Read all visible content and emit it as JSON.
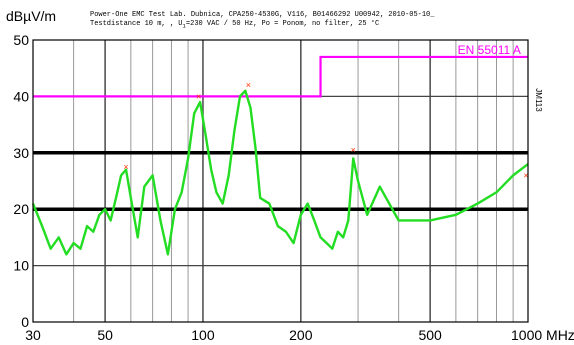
{
  "header": {
    "line1": "Power-One EMC Test Lab. Dubnica, CPA250-4530G, V116, B01466292 U00942, 2010-05-10_",
    "line2": "Testdistance 10 m, , U",
    "line2_sub": "1",
    "line2_rest": "=230 VAC / 50 Hz, Po = Ponom, no filter, 25 °C"
  },
  "chart_data": {
    "type": "line",
    "title": "",
    "ylabel": "dBµV/m",
    "xlabel": "MHz",
    "x_scale": "log",
    "xlim": [
      30,
      1000
    ],
    "ylim": [
      0,
      50
    ],
    "x_ticks": [
      {
        "value": 30,
        "label": "30"
      },
      {
        "value": 50,
        "label": "50"
      },
      {
        "value": 100,
        "label": "100"
      },
      {
        "value": 200,
        "label": "200"
      },
      {
        "value": 500,
        "label": "500"
      },
      {
        "value": 1000,
        "label": "1000 MHz"
      }
    ],
    "y_ticks": [
      0,
      10,
      20,
      30,
      40,
      50
    ],
    "grid": true,
    "side_label": "JM113",
    "colors": {
      "limit": "#ff00ff",
      "measurement": "#22dd22",
      "peak": "#ff3300",
      "qp": "#ffaa00"
    },
    "limit_line": {
      "name": "EN 55011 A",
      "x": [
        30,
        230,
        230,
        1000
      ],
      "y": [
        40,
        40,
        47,
        47
      ]
    },
    "measurement": {
      "x": [
        30,
        32,
        34,
        36,
        38,
        40,
        42,
        44,
        46,
        48,
        50,
        52,
        54,
        56,
        58,
        60,
        63,
        66,
        70,
        74,
        78,
        82,
        86,
        90,
        94,
        98,
        102,
        106,
        110,
        115,
        120,
        125,
        130,
        135,
        140,
        145,
        150,
        160,
        170,
        180,
        190,
        200,
        210,
        220,
        230,
        240,
        250,
        260,
        270,
        280,
        290,
        300,
        320,
        350,
        400,
        450,
        500,
        600,
        700,
        800,
        900,
        1000
      ],
      "y": [
        21,
        17,
        13,
        15,
        12,
        14,
        13,
        17,
        16,
        19,
        20,
        18,
        22,
        26,
        27,
        22,
        15,
        24,
        26,
        18,
        12,
        20,
        23,
        29,
        37,
        39,
        33,
        27,
        23,
        21,
        26,
        34,
        40,
        41,
        38,
        31,
        22,
        21,
        17,
        16,
        14,
        19,
        21,
        18,
        15,
        14,
        13,
        16,
        15,
        18,
        29,
        25,
        19,
        24,
        18,
        18,
        18,
        19,
        21,
        23,
        26,
        28
      ]
    },
    "peaks": [
      {
        "x": 58,
        "y": 27.5
      },
      {
        "x": 97,
        "y": 40
      },
      {
        "x": 138,
        "y": 42
      },
      {
        "x": 290,
        "y": 30.5
      },
      {
        "x": 1000,
        "y": 26
      }
    ]
  }
}
